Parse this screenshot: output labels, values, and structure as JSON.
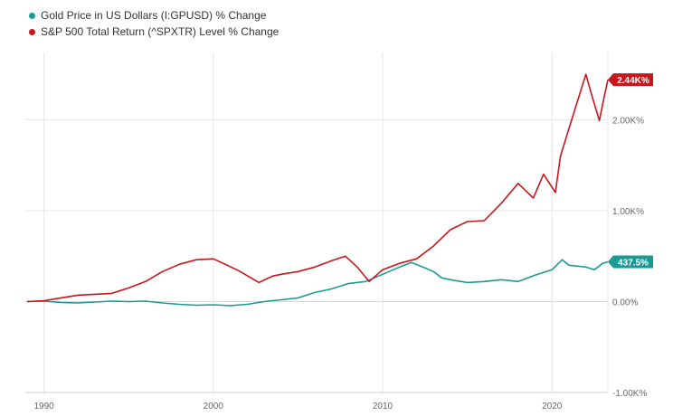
{
  "colors": {
    "gold": "#1a9a96",
    "spx": "#c8161d",
    "grid": "#e6e6e6",
    "axis": "#cccccc",
    "tick": "#666666"
  },
  "chart_data": {
    "type": "line",
    "title": "",
    "xlabel": "",
    "ylabel": "",
    "grid": true,
    "legend_position": "top-left",
    "x_ticks": [
      "1990",
      "2000",
      "2010",
      "2020"
    ],
    "y_ticks": [
      "2.00K%",
      "1.00K%",
      "0.00%",
      "-1.00K%"
    ],
    "xlim": [
      1988.9,
      2023.3
    ],
    "ylim": [
      -1000,
      2740
    ],
    "series": [
      {
        "name": "Gold Price in US Dollars (I:GPUSD) % Change",
        "end_label": "437.5%",
        "color": "#1a9a96",
        "points": [
          [
            1989.0,
            0
          ],
          [
            1990.0,
            5
          ],
          [
            1991.0,
            -10
          ],
          [
            1992.0,
            -15
          ],
          [
            1993.0,
            -5
          ],
          [
            1994.0,
            5
          ],
          [
            1995.0,
            0
          ],
          [
            1996.0,
            5
          ],
          [
            1997.0,
            -15
          ],
          [
            1998.0,
            -30
          ],
          [
            1999.0,
            -40
          ],
          [
            2000.0,
            -35
          ],
          [
            2001.0,
            -45
          ],
          [
            2002.0,
            -30
          ],
          [
            2003.0,
            0
          ],
          [
            2004.0,
            20
          ],
          [
            2005.0,
            40
          ],
          [
            2006.0,
            100
          ],
          [
            2007.0,
            140
          ],
          [
            2008.0,
            200
          ],
          [
            2009.0,
            220
          ],
          [
            2010.0,
            300
          ],
          [
            2011.0,
            380
          ],
          [
            2011.7,
            430
          ],
          [
            2012.5,
            370
          ],
          [
            2013.0,
            330
          ],
          [
            2013.5,
            260
          ],
          [
            2014.0,
            240
          ],
          [
            2015.0,
            210
          ],
          [
            2016.0,
            220
          ],
          [
            2017.0,
            240
          ],
          [
            2018.0,
            220
          ],
          [
            2019.0,
            290
          ],
          [
            2020.0,
            350
          ],
          [
            2020.6,
            460
          ],
          [
            2021.0,
            400
          ],
          [
            2022.0,
            380
          ],
          [
            2022.5,
            350
          ],
          [
            2023.0,
            420
          ],
          [
            2023.3,
            437.5
          ]
        ]
      },
      {
        "name": "S&P 500 Total Return (^SPXTR) Level % Change",
        "end_label": "2.44K%",
        "color": "#c8161d",
        "points": [
          [
            1989.0,
            0
          ],
          [
            1990.0,
            10
          ],
          [
            1991.0,
            40
          ],
          [
            1992.0,
            70
          ],
          [
            1993.0,
            80
          ],
          [
            1994.0,
            90
          ],
          [
            1995.0,
            150
          ],
          [
            1996.0,
            220
          ],
          [
            1997.0,
            330
          ],
          [
            1998.0,
            410
          ],
          [
            1999.0,
            460
          ],
          [
            2000.0,
            470
          ],
          [
            2000.7,
            410
          ],
          [
            2001.5,
            340
          ],
          [
            2002.7,
            210
          ],
          [
            2003.5,
            280
          ],
          [
            2004.0,
            300
          ],
          [
            2005.0,
            330
          ],
          [
            2006.0,
            380
          ],
          [
            2007.0,
            450
          ],
          [
            2007.8,
            500
          ],
          [
            2008.5,
            380
          ],
          [
            2009.2,
            220
          ],
          [
            2010.0,
            350
          ],
          [
            2011.0,
            420
          ],
          [
            2012.0,
            470
          ],
          [
            2013.0,
            610
          ],
          [
            2014.0,
            790
          ],
          [
            2015.0,
            880
          ],
          [
            2016.0,
            890
          ],
          [
            2017.0,
            1080
          ],
          [
            2018.0,
            1300
          ],
          [
            2018.9,
            1140
          ],
          [
            2019.5,
            1400
          ],
          [
            2020.2,
            1200
          ],
          [
            2020.5,
            1600
          ],
          [
            2021.0,
            1900
          ],
          [
            2021.5,
            2200
          ],
          [
            2022.0,
            2500
          ],
          [
            2022.3,
            2300
          ],
          [
            2022.8,
            1990
          ],
          [
            2023.0,
            2180
          ],
          [
            2023.3,
            2440
          ]
        ]
      }
    ]
  }
}
